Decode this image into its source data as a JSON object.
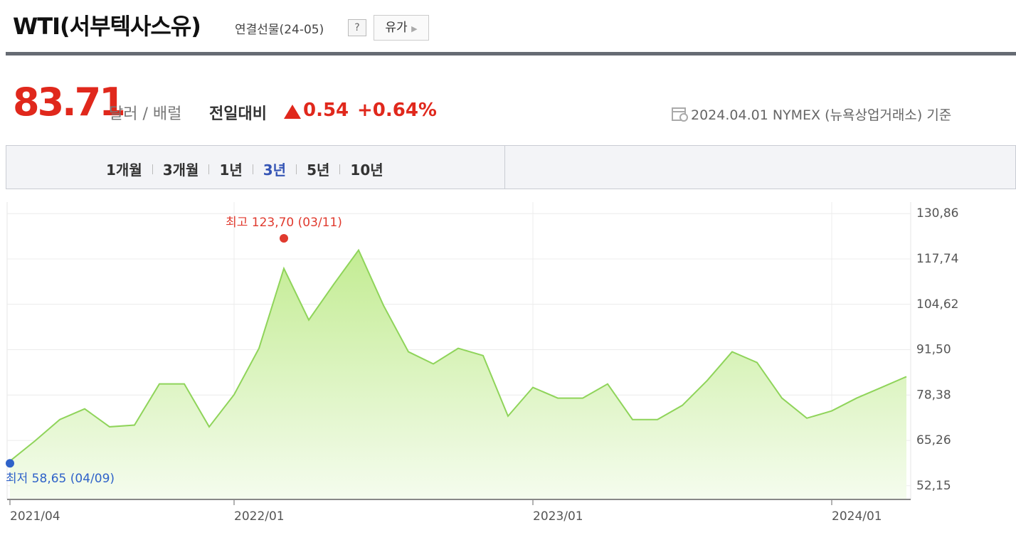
{
  "header": {
    "title": "WTI(서부텍사스유)",
    "subtitle": "연결선물(24-05)",
    "help": "?",
    "button": "유가"
  },
  "quote": {
    "price": "83.71",
    "unit": "달러 / 배럴",
    "change_label": "전일대비",
    "change": "0.54",
    "change_pct": "+0.64%",
    "asof": "2024.04.01 NYMEX (뉴욕상업거래소) 기준"
  },
  "tabs": {
    "items": [
      "1개월",
      "3개월",
      "1년",
      "3년",
      "5년",
      "10년"
    ],
    "selected": 3
  },
  "chart_data": {
    "type": "area",
    "color": "#8fd45a",
    "x": [
      "2021/04",
      "2021/05",
      "2021/06",
      "2021/07",
      "2021/08",
      "2021/09",
      "2021/10",
      "2021/11",
      "2021/12",
      "2022/01",
      "2022/02",
      "2022/03",
      "2022/04",
      "2022/05",
      "2022/06",
      "2022/07",
      "2022/08",
      "2022/09",
      "2022/10",
      "2022/11",
      "2022/12",
      "2023/01",
      "2023/02",
      "2023/03",
      "2023/04",
      "2023/05",
      "2023/06",
      "2023/07",
      "2023/08",
      "2023/09",
      "2023/10",
      "2023/11",
      "2023/12",
      "2024/01",
      "2024/02",
      "2024/03",
      "2024/04"
    ],
    "values": [
      59.3,
      65.1,
      71.3,
      74.4,
      69.2,
      69.7,
      81.6,
      81.6,
      69.2,
      78.5,
      91.9,
      115,
      100.1,
      110.4,
      120.3,
      104.3,
      90.9,
      87.4,
      91.9,
      89.8,
      72.3,
      80.6,
      77.5,
      77.5,
      81.6,
      71.3,
      71.3,
      75.4,
      82.6,
      90.9,
      87.8,
      77.5,
      71.7,
      73.8,
      77.5,
      80.6,
      83.71
    ],
    "ylim": [
      48.2,
      134.2
    ],
    "yticks": [
      {
        "value": 52.15,
        "label": "52,15"
      },
      {
        "value": 65.26,
        "label": "65,26"
      },
      {
        "value": 78.38,
        "label": "78,38"
      },
      {
        "value": 91.5,
        "label": "91,50"
      },
      {
        "value": 104.62,
        "label": "104,62"
      },
      {
        "value": 117.74,
        "label": "117,74"
      },
      {
        "value": 130.86,
        "label": "130,86"
      }
    ],
    "xticks": [
      "2021/04",
      "2022/01",
      "2023/01",
      "2024/01"
    ],
    "grid": true,
    "annotations": [
      {
        "text": "최고 123,70 (03/11)",
        "x": "2022/03",
        "value": 123.7,
        "color": "#e03a2e"
      },
      {
        "text": "최저 58,65 (04/09)",
        "x": "2021/04",
        "value": 58.65,
        "color": "#2f62c9"
      }
    ]
  }
}
